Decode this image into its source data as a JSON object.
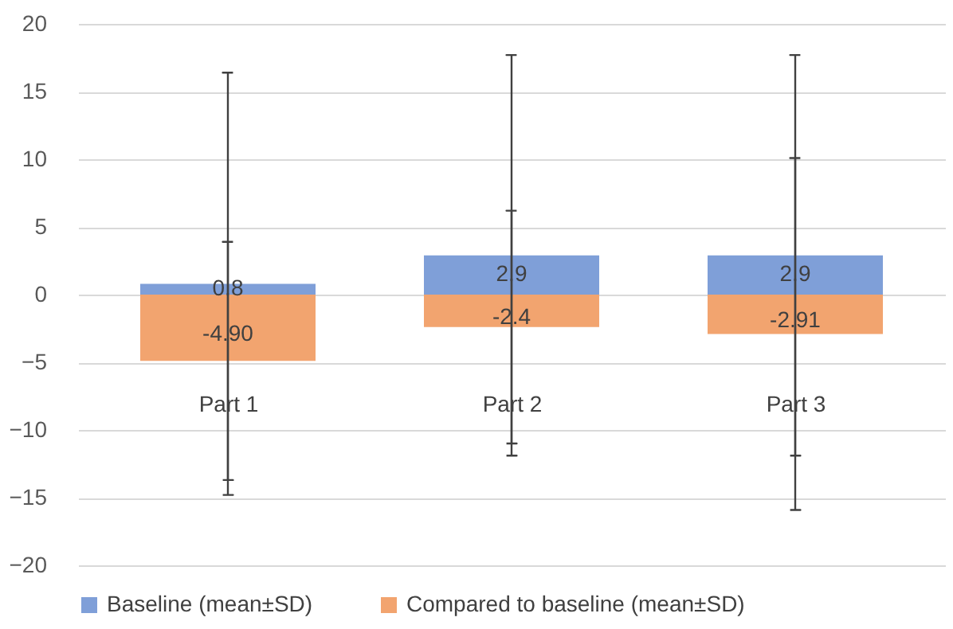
{
  "chart_data": {
    "type": "bar",
    "categories": [
      "Part 1",
      "Part 2",
      "Part 3"
    ],
    "series": [
      {
        "name": "Baseline (mean±SD)",
        "color": "#7f9fd8",
        "values": [
          0.8,
          2.9,
          2.9
        ],
        "errors": [
          15.6,
          14.8,
          14.8
        ],
        "value_labels": [
          "0.8",
          "2.9",
          "2.9"
        ]
      },
      {
        "name": "Compared to baseline (mean±SD)",
        "color": "#f2a46f",
        "values": [
          -4.9,
          -2.4,
          -2.91
        ],
        "errors": [
          8.8,
          8.6,
          13.0
        ],
        "value_labels": [
          "-4.90",
          "-2.4",
          "-2.91"
        ]
      }
    ],
    "ylim": [
      -20,
      20
    ],
    "yticks": [
      -20,
      -15,
      -10,
      -5,
      0,
      5,
      10,
      15,
      20
    ],
    "grid": "y",
    "legend": "bottom",
    "stacked": true
  }
}
